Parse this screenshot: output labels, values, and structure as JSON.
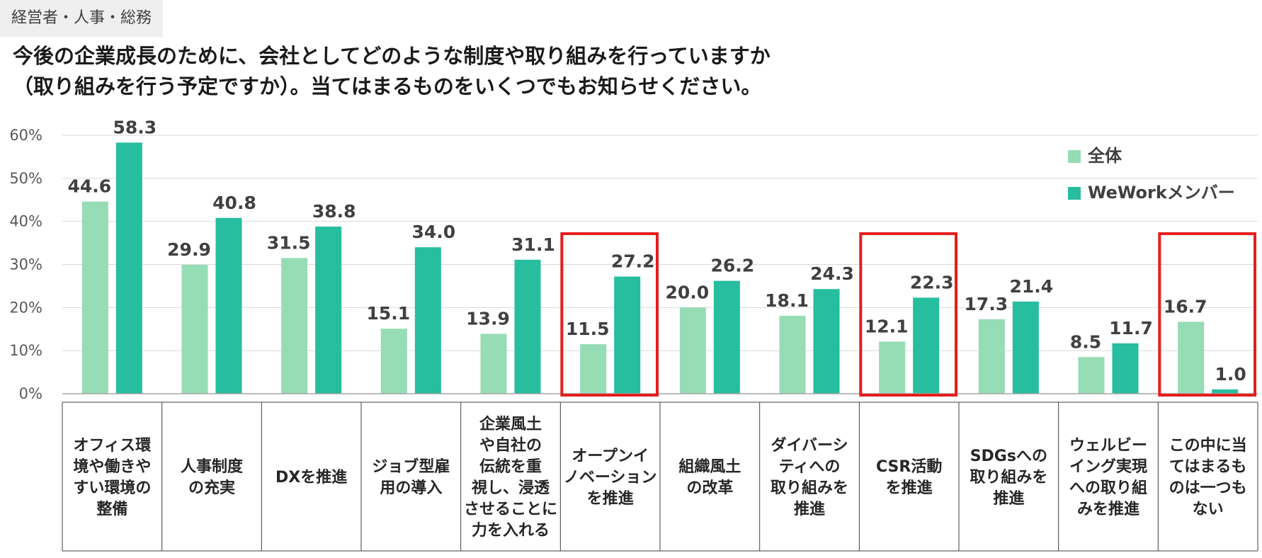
{
  "header": {
    "tag": "経営者・人事・総務",
    "title_line1": "今後の企業成長のために、会社としてどのような制度や取り組みを行っていますか",
    "title_line2": "（取り組みを行う予定ですか）。当てはまるものをいくつでもお知らせください。"
  },
  "chart_data": {
    "type": "bar",
    "title": "今後の企業成長のために、会社としてどのような制度や取り組みを行っていますか（取り組みを行う予定ですか）。当てはまるものをいくつでもお知らせください。",
    "xlabel": "",
    "ylabel": "",
    "ylim": [
      0,
      60
    ],
    "yticks": [
      "0%",
      "10%",
      "20%",
      "30%",
      "40%",
      "50%",
      "60%"
    ],
    "grid": true,
    "legend_position": "top-right",
    "categories": [
      [
        "オフィス環",
        "境や働きや",
        "すい環境の",
        "整備"
      ],
      [
        "人事制度",
        "の充実"
      ],
      [
        "DXを推進"
      ],
      [
        "ジョブ型雇",
        "用の導入"
      ],
      [
        "企業風土",
        "や自社の",
        "伝統を重",
        "視し、浸透",
        "させることに",
        "力を入れる"
      ],
      [
        "オープンイ",
        "ノベーション",
        "を推進"
      ],
      [
        "組織風土",
        "の改革"
      ],
      [
        "ダイバーシ",
        "ティへの",
        "取り組みを",
        "推進"
      ],
      [
        "CSR活動",
        "を推進"
      ],
      [
        "SDGsへの",
        "取り組みを",
        "推進"
      ],
      [
        "ウェルビー",
        "イング実現",
        "への取り組",
        "みを推進"
      ],
      [
        "この中に当",
        "てはまるも",
        "のは一つも",
        "ない"
      ]
    ],
    "highlighted": [
      5,
      8,
      11
    ],
    "series": [
      {
        "name": "全体",
        "color": "#96dcb5",
        "values": [
          44.6,
          29.9,
          31.5,
          15.1,
          13.9,
          11.5,
          20.0,
          18.1,
          12.1,
          17.3,
          8.5,
          16.7
        ],
        "labels": [
          "44.6",
          "29.9",
          "31.5",
          "15.1",
          "13.9",
          "11.5",
          "20.0",
          "18.1",
          "12.1",
          "17.3",
          "8.5",
          "16.7"
        ]
      },
      {
        "name": "WeWorkメンバー",
        "color": "#27bd9f",
        "values": [
          58.3,
          40.8,
          38.8,
          34.0,
          31.1,
          27.2,
          26.2,
          24.3,
          22.3,
          21.4,
          11.7,
          1.0
        ],
        "labels": [
          "58.3",
          "40.8",
          "38.8",
          "34.0",
          "31.1",
          "27.2",
          "26.2",
          "24.3",
          "22.3",
          "21.4",
          "11.7",
          "1.0"
        ]
      }
    ]
  }
}
